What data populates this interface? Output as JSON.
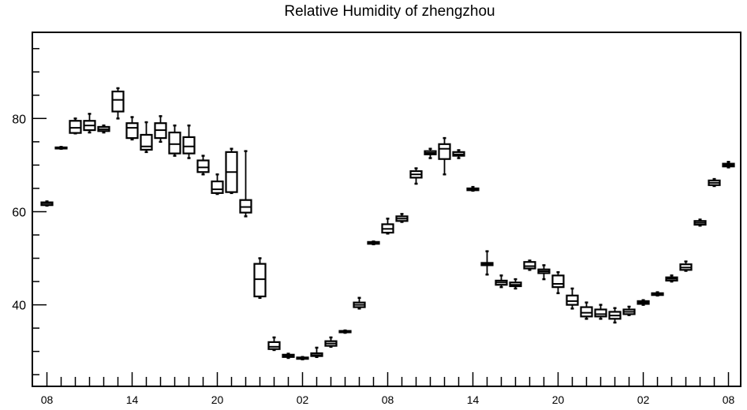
{
  "chart_data": {
    "type": "box",
    "title": "Relative Humidity of zhengzhou",
    "xlabel": "",
    "ylabel": "",
    "ylim": [
      22.5,
      98.5
    ],
    "y_ticks": [
      40,
      60,
      80
    ],
    "x_tick_labels": [
      "08",
      "14",
      "20",
      "02",
      "08",
      "14",
      "20",
      "02",
      "08"
    ],
    "x_label_index": [
      0,
      6,
      12,
      18,
      24,
      30,
      36,
      42,
      48
    ],
    "grid": false,
    "boxes": [
      {
        "i": 0,
        "low": 61.3,
        "q1": 61.4,
        "median": 61.8,
        "q3": 62.0,
        "high": 62.2
      },
      {
        "i": 1,
        "low": 73.5,
        "q1": 73.6,
        "median": 73.7,
        "q3": 73.8,
        "high": 73.9
      },
      {
        "i": 2,
        "low": 76.8,
        "q1": 76.9,
        "median": 78.0,
        "q3": 79.5,
        "high": 80.0
      },
      {
        "i": 3,
        "low": 77.0,
        "q1": 77.5,
        "median": 78.5,
        "q3": 79.5,
        "high": 81.0
      },
      {
        "i": 4,
        "low": 77.0,
        "q1": 77.3,
        "median": 77.7,
        "q3": 78.2,
        "high": 78.5
      },
      {
        "i": 5,
        "low": 80.0,
        "q1": 81.5,
        "median": 84.0,
        "q3": 85.8,
        "high": 86.5
      },
      {
        "i": 6,
        "low": 75.5,
        "q1": 75.8,
        "median": 78.0,
        "q3": 79.0,
        "high": 80.3
      },
      {
        "i": 7,
        "low": 72.8,
        "q1": 73.3,
        "median": 74.0,
        "q3": 76.5,
        "high": 79.2
      },
      {
        "i": 8,
        "low": 75.0,
        "q1": 75.8,
        "median": 77.5,
        "q3": 79.0,
        "high": 80.5
      },
      {
        "i": 9,
        "low": 72.0,
        "q1": 72.5,
        "median": 74.5,
        "q3": 77.0,
        "high": 78.5
      },
      {
        "i": 10,
        "low": 71.5,
        "q1": 72.5,
        "median": 74.0,
        "q3": 76.0,
        "high": 78.5
      },
      {
        "i": 11,
        "low": 68.0,
        "q1": 68.5,
        "median": 69.5,
        "q3": 71.0,
        "high": 72.0
      },
      {
        "i": 12,
        "low": 63.8,
        "q1": 64.0,
        "median": 64.8,
        "q3": 66.5,
        "high": 68.0
      },
      {
        "i": 13,
        "low": 64.0,
        "q1": 64.2,
        "median": 68.5,
        "q3": 72.8,
        "high": 73.5
      },
      {
        "i": 14,
        "low": 59.0,
        "q1": 59.8,
        "median": 61.0,
        "q3": 62.5,
        "high": 73.0
      },
      {
        "i": 15,
        "low": 41.5,
        "q1": 41.8,
        "median": 45.5,
        "q3": 48.8,
        "high": 50.0
      },
      {
        "i": 16,
        "low": 30.3,
        "q1": 30.5,
        "median": 31.0,
        "q3": 32.0,
        "high": 33.0
      },
      {
        "i": 17,
        "low": 28.6,
        "q1": 28.8,
        "median": 29.0,
        "q3": 29.3,
        "high": 29.5
      },
      {
        "i": 18,
        "low": 28.3,
        "q1": 28.4,
        "median": 28.6,
        "q3": 28.7,
        "high": 28.8
      },
      {
        "i": 19,
        "low": 28.8,
        "q1": 29.0,
        "median": 29.2,
        "q3": 29.6,
        "high": 30.8
      },
      {
        "i": 20,
        "low": 31.0,
        "q1": 31.2,
        "median": 31.7,
        "q3": 32.2,
        "high": 33.0
      },
      {
        "i": 21,
        "low": 34.0,
        "q1": 34.1,
        "median": 34.2,
        "q3": 34.4,
        "high": 34.5
      },
      {
        "i": 22,
        "low": 39.2,
        "q1": 39.5,
        "median": 40.0,
        "q3": 40.5,
        "high": 41.5
      },
      {
        "i": 23,
        "low": 53.0,
        "q1": 53.1,
        "median": 53.3,
        "q3": 53.5,
        "high": 53.6
      },
      {
        "i": 24,
        "low": 55.3,
        "q1": 55.5,
        "median": 56.3,
        "q3": 57.3,
        "high": 58.5
      },
      {
        "i": 25,
        "low": 57.8,
        "q1": 58.0,
        "median": 58.5,
        "q3": 59.0,
        "high": 59.5
      },
      {
        "i": 26,
        "low": 66.0,
        "q1": 67.3,
        "median": 68.0,
        "q3": 68.7,
        "high": 69.3
      },
      {
        "i": 27,
        "low": 71.5,
        "q1": 72.3,
        "median": 72.6,
        "q3": 73.0,
        "high": 73.5
      },
      {
        "i": 28,
        "low": 68.0,
        "q1": 71.3,
        "median": 73.5,
        "q3": 74.5,
        "high": 75.8
      },
      {
        "i": 29,
        "low": 71.5,
        "q1": 72.0,
        "median": 72.3,
        "q3": 72.8,
        "high": 73.2
      },
      {
        "i": 30,
        "low": 64.5,
        "q1": 64.6,
        "median": 64.8,
        "q3": 65.0,
        "high": 65.3
      },
      {
        "i": 31,
        "low": 46.5,
        "q1": 48.5,
        "median": 48.7,
        "q3": 49.0,
        "high": 51.5
      },
      {
        "i": 32,
        "low": 43.8,
        "q1": 44.3,
        "median": 44.8,
        "q3": 45.2,
        "high": 46.3
      },
      {
        "i": 33,
        "low": 43.5,
        "q1": 44.0,
        "median": 44.3,
        "q3": 44.8,
        "high": 45.5
      },
      {
        "i": 34,
        "low": 47.5,
        "q1": 47.8,
        "median": 48.3,
        "q3": 49.2,
        "high": 49.5
      },
      {
        "i": 35,
        "low": 45.5,
        "q1": 46.8,
        "median": 47.2,
        "q3": 47.6,
        "high": 48.5
      },
      {
        "i": 36,
        "low": 42.5,
        "q1": 43.8,
        "median": 44.5,
        "q3": 46.3,
        "high": 47.0
      },
      {
        "i": 37,
        "low": 39.2,
        "q1": 40.0,
        "median": 40.8,
        "q3": 42.0,
        "high": 43.5
      },
      {
        "i": 38,
        "low": 37.0,
        "q1": 37.5,
        "median": 38.3,
        "q3": 39.5,
        "high": 40.5
      },
      {
        "i": 39,
        "low": 37.0,
        "q1": 37.5,
        "median": 38.0,
        "q3": 39.0,
        "high": 40.0
      },
      {
        "i": 40,
        "low": 36.2,
        "q1": 37.0,
        "median": 37.7,
        "q3": 38.5,
        "high": 39.3
      },
      {
        "i": 41,
        "low": 37.8,
        "q1": 38.0,
        "median": 38.5,
        "q3": 39.0,
        "high": 39.6
      },
      {
        "i": 42,
        "low": 40.0,
        "q1": 40.2,
        "median": 40.5,
        "q3": 40.8,
        "high": 41.0
      },
      {
        "i": 43,
        "low": 42.0,
        "q1": 42.1,
        "median": 42.3,
        "q3": 42.5,
        "high": 42.7
      },
      {
        "i": 44,
        "low": 45.0,
        "q1": 45.2,
        "median": 45.6,
        "q3": 45.9,
        "high": 46.3
      },
      {
        "i": 45,
        "low": 47.3,
        "q1": 47.5,
        "median": 48.0,
        "q3": 48.7,
        "high": 49.3
      },
      {
        "i": 46,
        "low": 57.0,
        "q1": 57.2,
        "median": 57.6,
        "q3": 58.0,
        "high": 58.3
      },
      {
        "i": 47,
        "low": 65.5,
        "q1": 65.7,
        "median": 66.2,
        "q3": 66.7,
        "high": 67.0
      },
      {
        "i": 48,
        "low": 69.5,
        "q1": 69.7,
        "median": 70.0,
        "q3": 70.3,
        "high": 70.7
      }
    ]
  }
}
